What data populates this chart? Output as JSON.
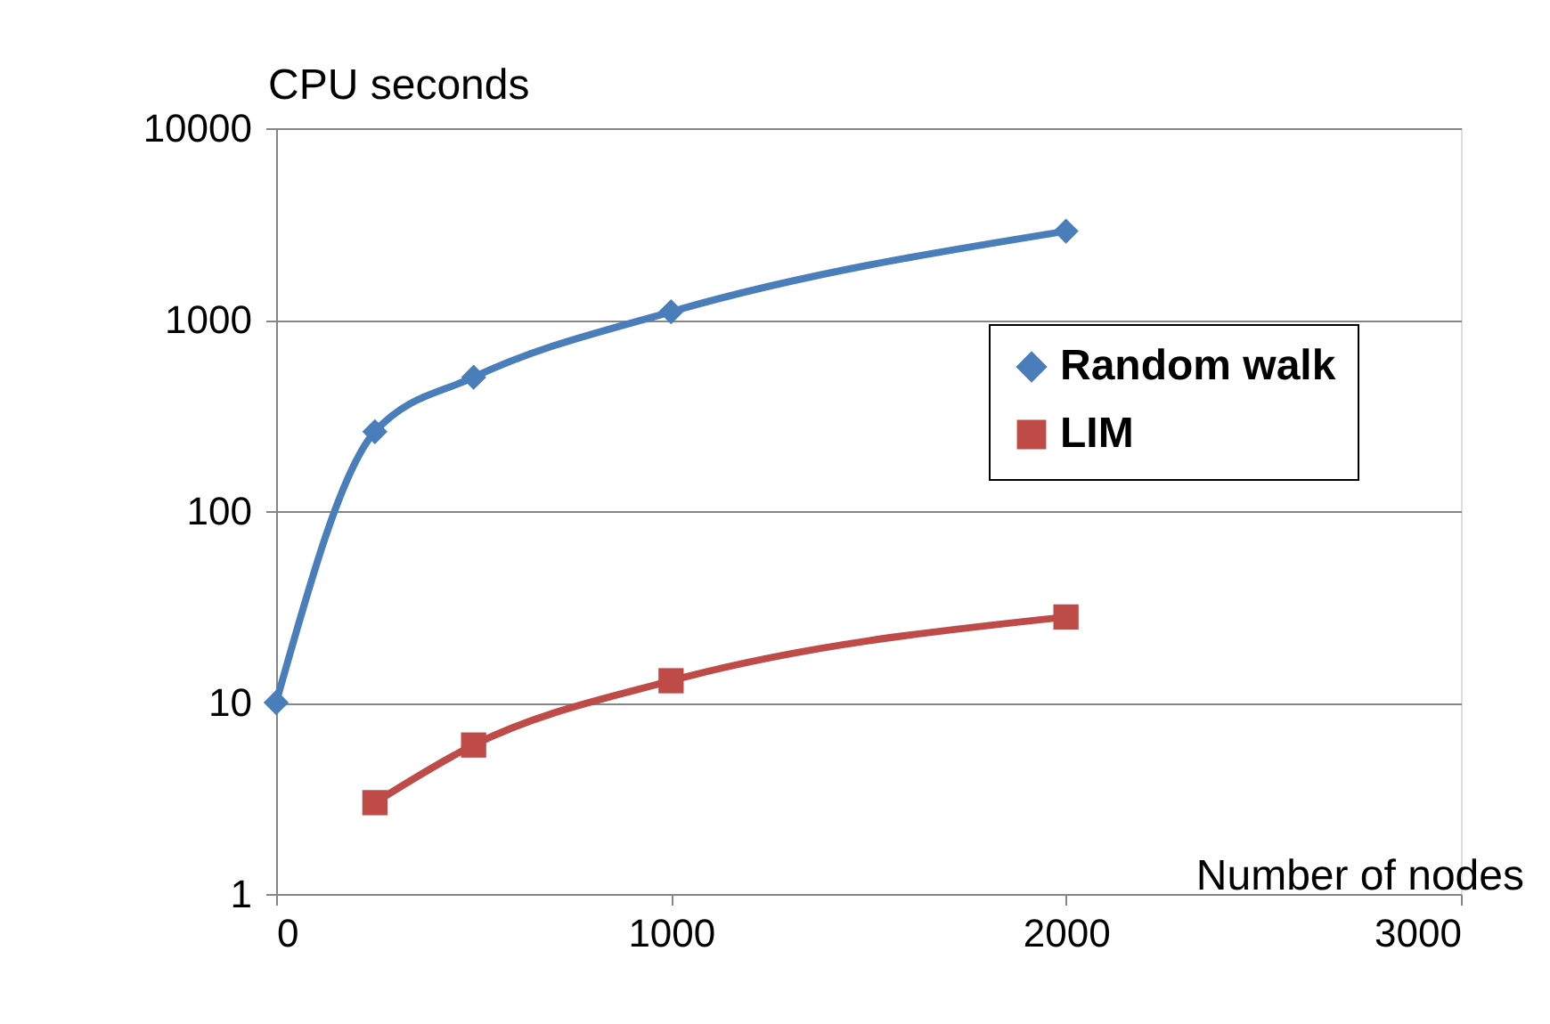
{
  "chart_data": {
    "type": "line",
    "ylabel": "CPU seconds",
    "xlabel": "Number of nodes",
    "log": "y",
    "xlim": [
      0,
      3000
    ],
    "xticks": [
      0,
      1000,
      2000,
      3000
    ],
    "ylim": [
      1,
      10000
    ],
    "yticks": [
      1,
      10,
      100,
      1000,
      10000
    ],
    "grid": "y",
    "legend": "right",
    "line_style": "solid",
    "series": [
      {
        "name": "Random walk",
        "color": "#4a7ebb",
        "marker": "diamond",
        "x": [
          0,
          250,
          500,
          1000,
          2000
        ],
        "values": [
          10,
          260,
          500,
          1100,
          2900
        ]
      },
      {
        "name": "LIM",
        "color": "#be4b48",
        "marker": "square",
        "x": [
          250,
          500,
          1000,
          2000
        ],
        "values": [
          3,
          6,
          13,
          28
        ]
      }
    ]
  }
}
